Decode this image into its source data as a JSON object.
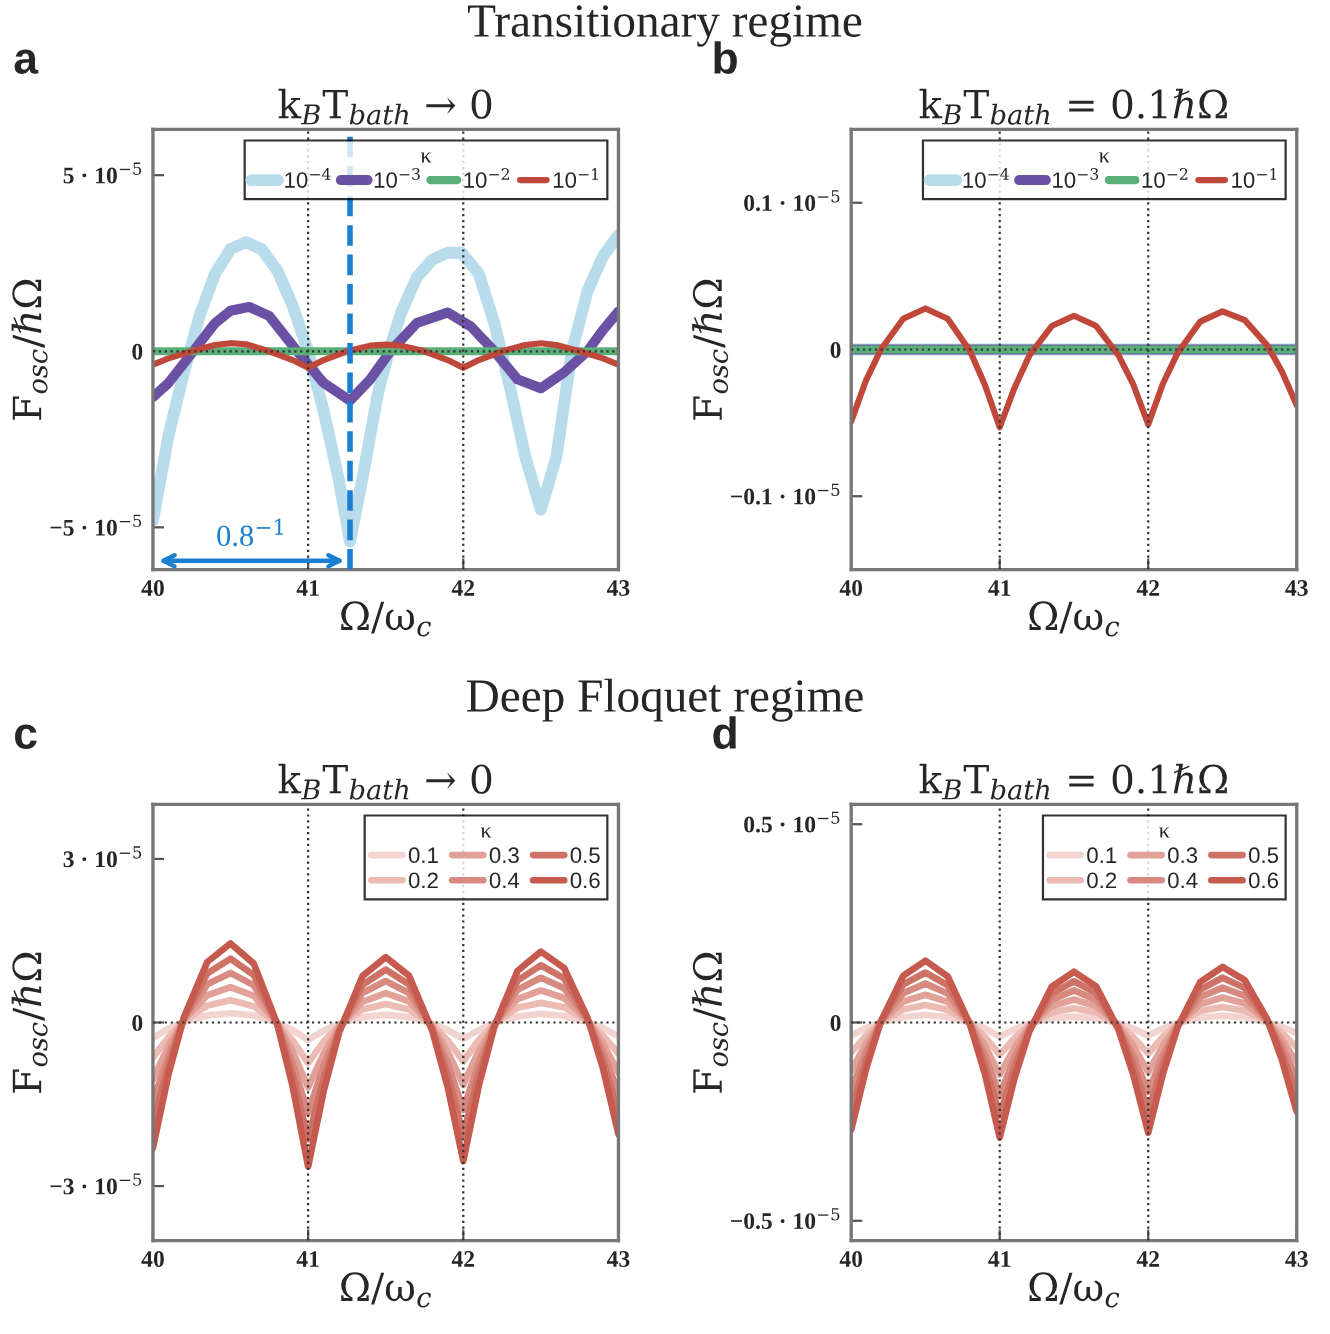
{
  "chart_data": [
    {
      "type": "line",
      "title": "k$_{B}$T$_{bath}$ → 0",
      "xlabel": "Ω/ω$_{c}$",
      "ylabel": "F$_{osc}$/ℏΩ",
      "annotations": [
        "a",
        "Transitionary regime"
      ],
      "xlim": [
        40,
        43
      ],
      "ylim": [
        -6.2e-05,
        6.3e-05
      ],
      "xticks": [
        40,
        41,
        42,
        43
      ],
      "yticks": [
        {
          "value": 5e-05,
          "label": "5 · 10$^{−5}$"
        },
        0,
        {
          "value": -5e-05,
          "label": "−5 · 10$^{−5}$"
        }
      ],
      "legend": "top right",
      "legend_title": "κ",
      "line_style": "solid",
      "ref_lines": [
        {
          "axis": "x",
          "value": 41,
          "color": "#333333",
          "line_style": "dotted"
        },
        {
          "axis": "x",
          "value": 42,
          "color": "#333333",
          "line_style": "dotted"
        },
        {
          "axis": "y",
          "value": 0,
          "color": "#333333",
          "line_style": "dotted"
        },
        {
          "axis": "x",
          "value": 41.27,
          "color": "#1a7fd0",
          "line_style": "dashed",
          "label": "0.8$^{−1}$"
        }
      ],
      "series": [
        {
          "name": "10$^{−4}$",
          "color": "#b9dcec",
          "x": [
            40,
            40.1,
            40.2,
            40.3,
            40.4,
            40.5,
            40.6,
            40.7,
            40.8,
            40.9,
            41,
            41.1,
            41.2,
            41.27,
            41.35,
            41.45,
            41.52,
            41.6,
            41.7,
            41.8,
            41.9,
            41.99,
            42.1,
            42.2,
            42.3,
            42.4,
            42.5,
            42.6,
            42.7,
            42.8,
            42.9,
            43
          ],
          "values": [
            -4.8e-05,
            -2.4e-05,
            -6e-06,
            1e-05,
            2.2e-05,
            2.9e-05,
            3.1e-05,
            2.9e-05,
            2.3e-05,
            1.3e-05,
            0.0,
            -1.7e-05,
            -3.7e-05,
            -5.4e-05,
            -3.6e-05,
            -1.2e-05,
            0.0,
            1.1e-05,
            2.1e-05,
            2.6e-05,
            2.8e-05,
            2.8e-05,
            2.2e-05,
            8e-06,
            -1e-05,
            -3e-05,
            -4.5e-05,
            -3e-05,
            0.0,
            1.7e-05,
            2.7e-05,
            3.3e-05
          ]
        },
        {
          "name": "10$^{−3}$",
          "color": "#6a51a3",
          "x": [
            40,
            40.1,
            40.26,
            40.4,
            40.5,
            40.62,
            40.75,
            40.93,
            41.1,
            41.27,
            41.4,
            41.53,
            41.7,
            41.9,
            42.05,
            42.2,
            42.35,
            42.5,
            42.65,
            42.8,
            42.9,
            43
          ],
          "values": [
            -1.3e-05,
            -9e-06,
            0.0,
            8e-06,
            1.15e-05,
            1.26e-05,
            1e-05,
            0.0,
            -9e-06,
            -1.4e-05,
            -8e-06,
            0.0,
            8e-06,
            1.1e-05,
            7e-06,
            0.0,
            -8e-06,
            -1.05e-05,
            -6e-06,
            0.0,
            6e-06,
            1.13e-05
          ]
        },
        {
          "name": "10$^{−2}$",
          "color": "#5aae78",
          "x": [
            40,
            43
          ],
          "values": [
            0.0,
            0.0
          ]
        },
        {
          "name": "10$^{−1}$",
          "color": "#c0483a",
          "x": [
            40,
            40.1,
            40.25,
            40.4,
            40.5,
            40.6,
            40.75,
            40.9,
            41,
            41.1,
            41.25,
            41.4,
            41.5,
            41.6,
            41.75,
            41.9,
            42,
            42.1,
            42.25,
            42.4,
            42.5,
            42.6,
            42.75,
            42.9,
            43
          ],
          "values": [
            -3.8e-06,
            -2e-06,
            0.0,
            1.8e-06,
            2.3e-06,
            2e-06,
            0.0,
            -2.5e-06,
            -4.7e-06,
            -2.5e-06,
            0.0,
            1.6e-06,
            1.9e-06,
            1.6e-06,
            0.0,
            -2.5e-06,
            -4.7e-06,
            -2.5e-06,
            0.0,
            1.8e-06,
            2.3e-06,
            1.8e-06,
            0.0,
            -2e-06,
            -3.8e-06
          ]
        }
      ]
    },
    {
      "type": "line",
      "title": "k$_{B}$T$_{bath}$ = 0.1ℏΩ",
      "xlabel": "Ω/ω$_{c}$",
      "ylabel": "F$_{osc}$/ℏΩ",
      "annotations": [
        "b"
      ],
      "xlim": [
        40,
        43
      ],
      "ylim": [
        -1.5e-06,
        1.5e-06
      ],
      "xticks": [
        40,
        41,
        42,
        43
      ],
      "yticks": [
        {
          "value": 1e-06,
          "label": "0.1 · 10$^{−5}$"
        },
        0,
        {
          "value": -1e-06,
          "label": "−0.1 · 10$^{−5}$"
        }
      ],
      "legend": "top right",
      "legend_title": "κ",
      "line_style": "solid",
      "ref_lines": [
        {
          "axis": "x",
          "value": 41,
          "color": "#333333",
          "line_style": "dotted"
        },
        {
          "axis": "x",
          "value": 42,
          "color": "#333333",
          "line_style": "dotted"
        },
        {
          "axis": "y",
          "value": 0,
          "color": "#333333",
          "line_style": "dotted"
        }
      ],
      "x": [
        40,
        40.1,
        40.2,
        40.35,
        40.5,
        40.65,
        40.8,
        40.9,
        41,
        41.1,
        41.2,
        41.35,
        41.5,
        41.65,
        41.8,
        41.9,
        42,
        42.1,
        42.2,
        42.35,
        42.5,
        42.65,
        42.8,
        42.9,
        43
      ],
      "series": [
        {
          "name": "10$^{−4}$",
          "color": "#b9dcec",
          "x": [
            40,
            43
          ],
          "values": [
            0.0,
            0.0
          ]
        },
        {
          "name": "10$^{−3}$",
          "color": "#6a51a3",
          "x": [
            40,
            43
          ],
          "values": [
            0.0,
            0.0
          ]
        },
        {
          "name": "10$^{−2}$",
          "color": "#5aae78",
          "x": [
            40,
            43
          ],
          "values": [
            0.0,
            0.0
          ]
        },
        {
          "name": "10$^{−1}$",
          "color": "#c0483a",
          "values": [
            -4.9e-07,
            -2.1e-07,
            0.0,
            2.1e-07,
            2.8e-07,
            2.1e-07,
            -1e-08,
            -2.4e-07,
            -5.3e-07,
            -2.6e-07,
            -4e-08,
            1.6e-07,
            2.3e-07,
            1.6e-07,
            -4e-08,
            -2.4e-07,
            -5.1e-07,
            -2.3e-07,
            -2e-08,
            1.9e-07,
            2.6e-07,
            2e-07,
            3e-08,
            -1.5e-07,
            -3.8e-07
          ]
        }
      ]
    },
    {
      "type": "line",
      "title": "k$_{B}$T$_{bath}$ → 0",
      "xlabel": "Ω/ω$_{c}$",
      "ylabel": "F$_{osc}$/ℏΩ",
      "annotations": [
        "c",
        "Deep Floquet regime"
      ],
      "xlim": [
        40,
        43
      ],
      "ylim": [
        -4e-05,
        4e-05
      ],
      "xticks": [
        40,
        41,
        42,
        43
      ],
      "yticks": [
        {
          "value": 3e-05,
          "label": "3 · 10$^{−5}$"
        },
        0,
        {
          "value": -3e-05,
          "label": "−3 · 10$^{−5}$"
        }
      ],
      "legend": "top right",
      "legend_title": "κ",
      "line_style": "solid",
      "ref_lines": [
        {
          "axis": "x",
          "value": 41,
          "color": "#333333",
          "line_style": "dotted"
        },
        {
          "axis": "x",
          "value": 42,
          "color": "#333333",
          "line_style": "dotted"
        },
        {
          "axis": "y",
          "value": 0,
          "color": "#333333",
          "line_style": "dotted"
        }
      ],
      "x": [
        40,
        40.1,
        40.2,
        40.35,
        40.5,
        40.65,
        40.8,
        40.9,
        41,
        41.1,
        41.2,
        41.35,
        41.5,
        41.65,
        41.8,
        41.9,
        42,
        42.1,
        42.2,
        42.35,
        42.5,
        42.65,
        42.8,
        42.9,
        43
      ],
      "series": [
        {
          "name": "0.1",
          "color": "#f3d3cf",
          "values": [
            -2.8e-06,
            -1.1e-06,
            1e-07,
            1.3e-06,
            1.7e-06,
            1.3e-06,
            0.0,
            -1.4e-06,
            -3.2e-06,
            -1.5e-06,
            -2e-07,
            1e-06,
            1.4e-06,
            1e-06,
            -2e-07,
            -1.4e-06,
            -3e-06,
            -1.4e-06,
            -1e-07,
            1.1e-06,
            1.6e-06,
            1.2e-06,
            1e-07,
            -1e-06,
            -2.5e-06
          ]
        },
        {
          "name": "0.2",
          "color": "#ebbab3",
          "values": [
            -6.4e-06,
            -2.7e-06,
            3e-07,
            3.1e-06,
            4.1e-06,
            3e-06,
            -1e-07,
            -3.3e-06,
            -7.4e-06,
            -3.5e-06,
            -5e-07,
            2.4e-06,
            3.4e-06,
            2.4e-06,
            -4e-07,
            -3.3e-06,
            -7.1e-06,
            -3.2e-06,
            -2e-07,
            2.7e-06,
            3.6e-06,
            2.8e-06,
            3e-07,
            -2.4e-06,
            -5.7e-06
          ]
        },
        {
          "name": "0.3",
          "color": "#e2a198",
          "values": [
            -1.04e-05,
            -4.3e-06,
            5e-07,
            5e-06,
            6.5e-06,
            4.9e-06,
            -1e-07,
            -5.3e-06,
            -1.19e-05,
            -5.7e-06,
            -8e-07,
            3.8e-06,
            5.4e-06,
            3.9e-06,
            -7e-07,
            -5.4e-06,
            -1.14e-05,
            -5.2e-06,
            -4e-07,
            4.3e-06,
            5.9e-06,
            4.5e-06,
            4e-07,
            -3.8e-06,
            -9.2e-06
          ]
        },
        {
          "name": "0.4",
          "color": "#d98a80",
          "values": [
            -1.45e-05,
            -6e-06,
            6e-07,
            7e-06,
            9.1e-06,
            6.8e-06,
            -1e-07,
            -7.4e-06,
            -1.66e-05,
            -7.9e-06,
            -1.1e-06,
            5.4e-06,
            7.6e-06,
            5.4e-06,
            -9e-07,
            -7.5e-06,
            -1.6e-05,
            -7.3e-06,
            -5e-07,
            6e-06,
            8.2e-06,
            6.3e-06,
            6e-07,
            -5.3e-06,
            -1.29e-05
          ]
        },
        {
          "name": "0.5",
          "color": "#cf7266",
          "values": [
            -1.86e-05,
            -7.7e-06,
            8e-07,
            9e-06,
            1.17e-05,
            8.7e-06,
            -2e-07,
            -9.5e-06,
            -2.14e-05,
            -1.02e-05,
            -1.5e-06,
            6.9e-06,
            9.7e-06,
            7e-06,
            -1.2e-06,
            -9.6e-06,
            -2.06e-05,
            -9.4e-06,
            -6e-07,
            7.7e-06,
            1.05e-05,
            8.1e-06,
            7e-07,
            -6.8e-06,
            -1.66e-05
          ]
        },
        {
          "name": "0.6",
          "color": "#c65a4e",
          "values": [
            -2.3e-05,
            -9.5e-06,
            1e-06,
            1.11e-05,
            1.45e-05,
            1.08e-05,
            -2e-07,
            -1.17e-05,
            -2.64e-05,
            -1.26e-05,
            -1.8e-06,
            8.5e-06,
            1.2e-05,
            8.6e-06,
            -1.5e-06,
            -1.19e-05,
            -2.54e-05,
            -1.16e-05,
            -8e-07,
            9.5e-06,
            1.3e-05,
            1e-05,
            9e-07,
            -8.4e-06,
            -2.05e-05
          ]
        }
      ]
    },
    {
      "type": "line",
      "title": "k$_{B}$T$_{bath}$ = 0.1ℏΩ",
      "xlabel": "Ω/ω$_{c}$",
      "ylabel": "F$_{osc}$/ℏΩ",
      "annotations": [
        "d"
      ],
      "xlim": [
        40,
        43
      ],
      "ylim": [
        -5.5e-06,
        5.5e-06
      ],
      "xticks": [
        40,
        41,
        42,
        43
      ],
      "yticks": [
        {
          "value": 5e-06,
          "label": "0.5 · 10$^{−5}$"
        },
        0,
        {
          "value": -5e-06,
          "label": "−0.5 · 10$^{−5}$"
        }
      ],
      "legend": "top right",
      "legend_title": "κ",
      "line_style": "solid",
      "ref_lines": [
        {
          "axis": "x",
          "value": 41,
          "color": "#333333",
          "line_style": "dotted"
        },
        {
          "axis": "x",
          "value": 42,
          "color": "#333333",
          "line_style": "dotted"
        },
        {
          "axis": "y",
          "value": 0,
          "color": "#333333",
          "line_style": "dotted"
        }
      ],
      "x": [
        40,
        40.1,
        40.2,
        40.35,
        40.5,
        40.65,
        40.8,
        40.9,
        41,
        41.1,
        41.2,
        41.35,
        41.5,
        41.65,
        41.8,
        41.9,
        42,
        42.1,
        42.2,
        42.35,
        42.5,
        42.65,
        42.8,
        42.9,
        43
      ],
      "series": [
        {
          "name": "0.1",
          "color": "#f3d3cf",
          "values": [
            -3.2e-07,
            -1.4e-07,
            0.0,
            1.4e-07,
            1.9e-07,
            1.4e-07,
            -1e-08,
            -1.5e-07,
            -3.5e-07,
            -1.7e-07,
            -3e-08,
            1.1e-07,
            1.5e-07,
            1.1e-07,
            -2e-08,
            -1.6e-07,
            -3.3e-07,
            -1.5e-07,
            -1e-08,
            1.2e-07,
            1.7e-07,
            1.3e-07,
            1e-08,
            -1.1e-07,
            -2.7e-07
          ]
        },
        {
          "name": "0.2",
          "color": "#ebbab3",
          "values": [
            -7.6e-07,
            -3.3e-07,
            1e-08,
            3.3e-07,
            4.4e-07,
            3.2e-07,
            -1e-08,
            -3.6e-07,
            -8.1e-07,
            -3.9e-07,
            -6e-08,
            2.5e-07,
            3.6e-07,
            2.5e-07,
            -5e-08,
            -3.7e-07,
            -7.8e-07,
            -3.6e-07,
            -3e-08,
            2.9e-07,
            3.9e-07,
            3e-07,
            3e-08,
            -2.6e-07,
            -6.3e-07
          ]
        },
        {
          "name": "0.3",
          "color": "#e2a198",
          "values": [
            -1.22e-06,
            -5.3e-07,
            1e-08,
            5.3e-07,
            7e-07,
            5.2e-07,
            -2e-08,
            -5.8e-07,
            -1.31e-06,
            -6.3e-07,
            -1e-07,
            4.1e-07,
            5.8e-07,
            4.1e-07,
            -8e-08,
            -5.9e-07,
            -1.25e-06,
            -5.8e-07,
            -5e-08,
            4.6e-07,
            6.3e-07,
            4.8e-07,
            4e-08,
            -4.2e-07,
            -1.01e-06
          ]
        },
        {
          "name": "0.4",
          "color": "#d98a80",
          "values": [
            -1.7e-06,
            -7.4e-07,
            2e-08,
            7.4e-07,
            9.8e-07,
            7.3e-07,
            -3e-08,
            -8.1e-07,
            -1.83e-06,
            -8.8e-07,
            -1.4e-07,
            5.7e-07,
            8.1e-07,
            5.7e-07,
            -1.1e-07,
            -8.3e-07,
            -1.75e-06,
            -8.1e-07,
            -6e-08,
            6.4e-07,
            8.8e-07,
            6.7e-07,
            6e-08,
            -5.9e-07,
            -1.42e-06
          ]
        },
        {
          "name": "0.5",
          "color": "#cf7266",
          "values": [
            -2.19e-06,
            -9.5e-07,
            2e-08,
            9.6e-07,
            1.26e-06,
            9.4e-07,
            -4e-08,
            -1.04e-06,
            -2.35e-06,
            -1.13e-06,
            -1.8e-07,
            7.3e-07,
            1.04e-06,
            7.4e-07,
            -1.5e-07,
            -1.07e-06,
            -2.25e-06,
            -1.04e-06,
            -8e-08,
            8.3e-07,
            1.13e-06,
            8.7e-07,
            7e-08,
            -7.6e-07,
            -1.82e-06
          ]
        },
        {
          "name": "0.6",
          "color": "#c65a4e",
          "values": [
            -2.7e-06,
            -1.17e-06,
            3e-08,
            1.18e-06,
            1.56e-06,
            1.16e-06,
            -5e-08,
            -1.29e-06,
            -2.9e-06,
            -1.4e-06,
            -2.2e-07,
            9e-07,
            1.28e-06,
            9.1e-07,
            -1.8e-07,
            -1.32e-06,
            -2.78e-06,
            -1.28e-06,
            -1e-07,
            1.02e-06,
            1.4e-06,
            1.07e-06,
            9e-08,
            -9.4e-07,
            -2.25e-06
          ]
        }
      ]
    }
  ]
}
